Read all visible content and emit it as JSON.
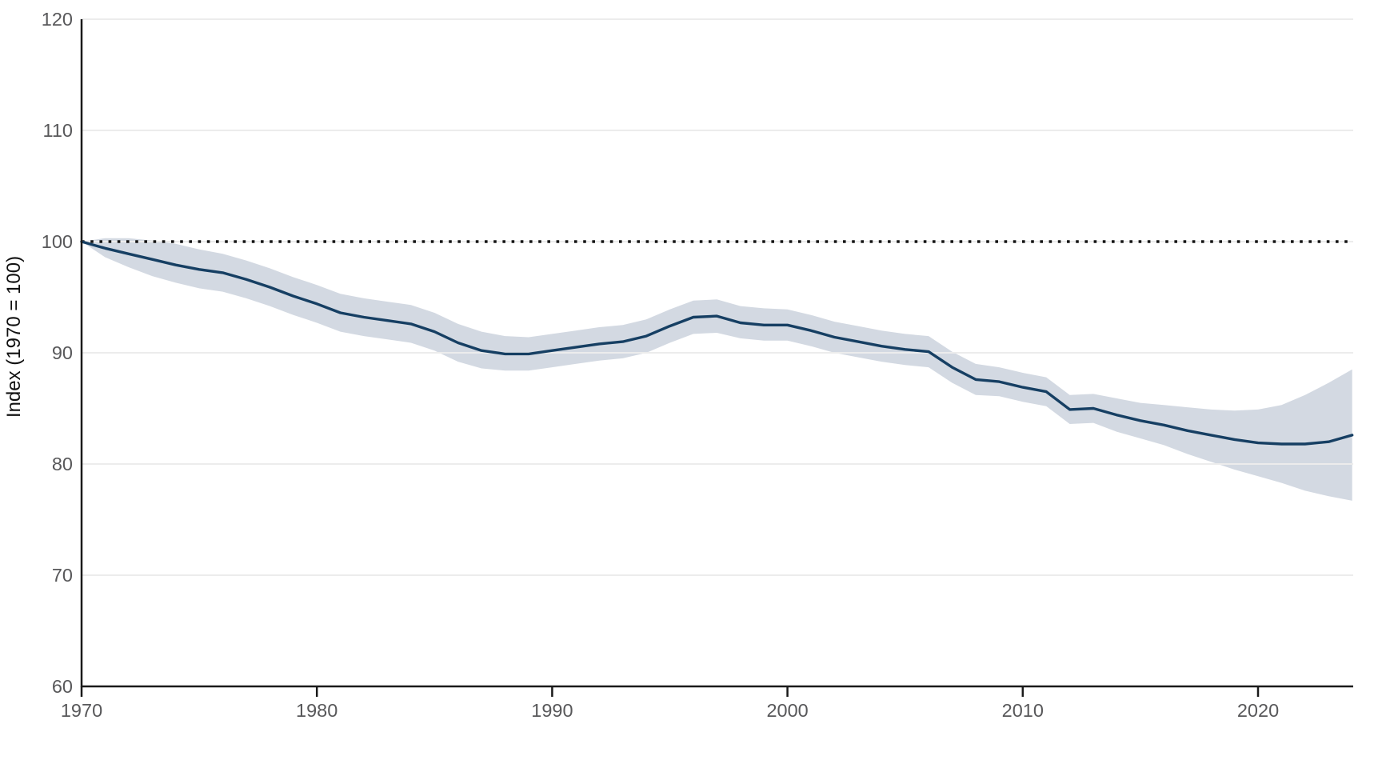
{
  "chart_data": {
    "type": "line",
    "title": "",
    "xlabel": "",
    "ylabel": "Index (1970 = 100)",
    "xlim": [
      1970,
      2024
    ],
    "ylim": [
      60,
      120
    ],
    "x_ticks": [
      1970,
      1980,
      1990,
      2000,
      2010,
      2020
    ],
    "y_ticks": [
      60,
      70,
      80,
      90,
      100,
      110,
      120
    ],
    "grid": "horizontal-only",
    "legend": "none",
    "reference_line_y": 100,
    "x": [
      1970,
      1971,
      1972,
      1973,
      1974,
      1975,
      1976,
      1977,
      1978,
      1979,
      1980,
      1981,
      1982,
      1983,
      1984,
      1985,
      1986,
      1987,
      1988,
      1989,
      1990,
      1991,
      1992,
      1993,
      1994,
      1995,
      1996,
      1997,
      1998,
      1999,
      2000,
      2001,
      2002,
      2003,
      2004,
      2005,
      2006,
      2007,
      2008,
      2009,
      2010,
      2011,
      2012,
      2013,
      2014,
      2015,
      2016,
      2017,
      2018,
      2019,
      2020,
      2021,
      2022,
      2023,
      2024
    ],
    "series": [
      {
        "name": "index-mean",
        "values": [
          100,
          99.4,
          98.9,
          98.4,
          97.9,
          97.5,
          97.2,
          96.6,
          95.9,
          95.1,
          94.4,
          93.6,
          93.2,
          92.9,
          92.6,
          91.9,
          90.9,
          90.2,
          89.9,
          89.9,
          90.2,
          90.5,
          90.8,
          91,
          91.5,
          92.4,
          93.2,
          93.3,
          92.7,
          92.5,
          92.5,
          92,
          91.4,
          91,
          90.6,
          90.3,
          90.1,
          88.7,
          87.6,
          87.4,
          86.9,
          86.5,
          84.9,
          85,
          84.4,
          83.9,
          83.5,
          83,
          82.6,
          82.2,
          81.9,
          81.8,
          81.8,
          82,
          82.6
        ]
      },
      {
        "name": "confidence-upper",
        "values": [
          100,
          100.3,
          100.3,
          100.1,
          99.8,
          99.3,
          98.9,
          98.3,
          97.6,
          96.8,
          96.1,
          95.3,
          94.9,
          94.6,
          94.3,
          93.6,
          92.6,
          91.9,
          91.5,
          91.4,
          91.7,
          92,
          92.3,
          92.5,
          93,
          93.9,
          94.7,
          94.8,
          94.2,
          94,
          93.9,
          93.4,
          92.8,
          92.4,
          92,
          91.7,
          91.5,
          90.1,
          89,
          88.7,
          88.2,
          87.8,
          86.2,
          86.3,
          85.9,
          85.5,
          85.3,
          85.1,
          84.9,
          84.8,
          84.9,
          85.3,
          86.2,
          87.3,
          88.5
        ]
      },
      {
        "name": "confidence-lower",
        "values": [
          100,
          98.6,
          97.7,
          96.9,
          96.3,
          95.8,
          95.5,
          94.9,
          94.2,
          93.4,
          92.7,
          91.9,
          91.5,
          91.2,
          90.9,
          90.2,
          89.2,
          88.6,
          88.4,
          88.4,
          88.7,
          89,
          89.3,
          89.5,
          90,
          90.9,
          91.7,
          91.8,
          91.3,
          91.1,
          91.1,
          90.6,
          90,
          89.6,
          89.2,
          88.9,
          88.7,
          87.3,
          86.2,
          86.1,
          85.6,
          85.2,
          83.6,
          83.7,
          82.9,
          82.3,
          81.7,
          80.9,
          80.2,
          79.5,
          78.9,
          78.3,
          77.6,
          77.1,
          76.7
        ]
      }
    ],
    "colors": {
      "line": "#163f63",
      "band": "#d3d9e2",
      "axis": "#1a1a1a",
      "tick_label": "#58585a",
      "gridline": "#ececec",
      "reference_line": "#141414",
      "background": "#ffffff"
    }
  }
}
